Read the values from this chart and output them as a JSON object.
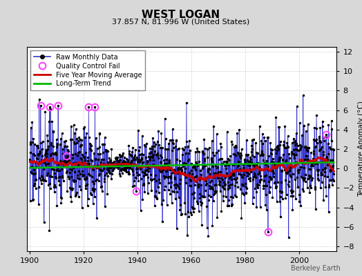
{
  "title": "WEST LOGAN",
  "subtitle": "37.857 N, 81.996 W (United States)",
  "ylabel": "Temperature Anomaly (°C)",
  "credit": "Berkeley Earth",
  "xlim": [
    1899,
    2014
  ],
  "ylim": [
    -8.5,
    12.5
  ],
  "yticks": [
    -8,
    -6,
    -4,
    -2,
    0,
    2,
    4,
    6,
    8,
    10,
    12
  ],
  "xticks": [
    1900,
    1920,
    1940,
    1960,
    1980,
    2000
  ],
  "seed": 17,
  "raw_line_color": "#3333cc",
  "stem_color": "#9999ee",
  "dot_color": "#000000",
  "moving_avg_color": "#cc0000",
  "trend_color": "#00bb00",
  "qc_color": "#ff44ff",
  "fig_bg": "#d8d8d8",
  "plot_bg": "#ffffff"
}
